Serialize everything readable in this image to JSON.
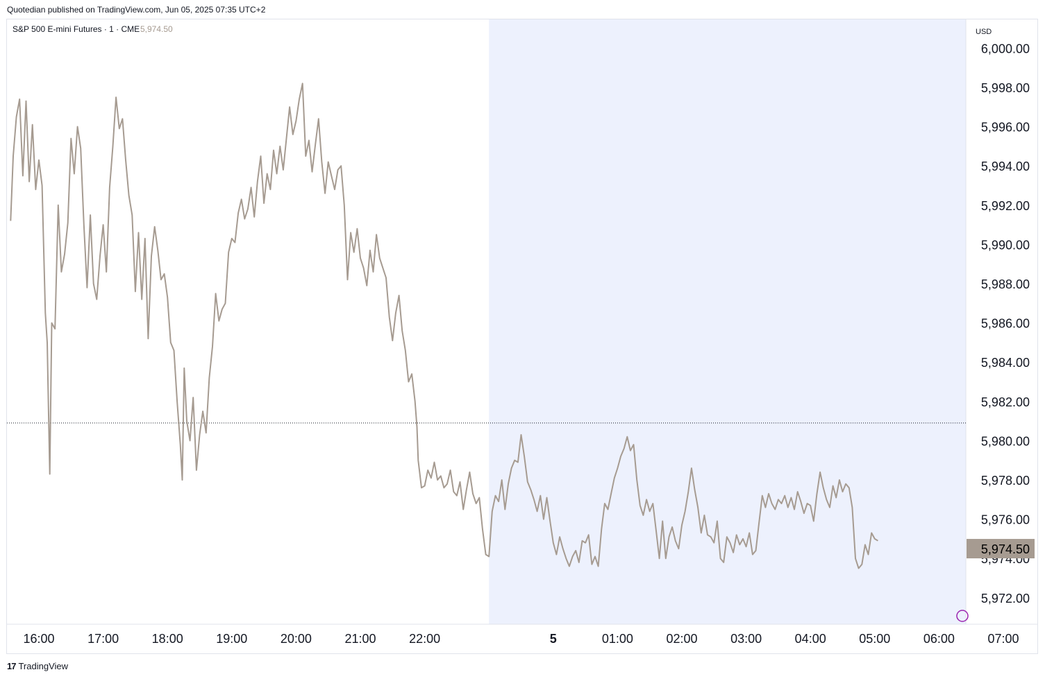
{
  "publisher_line": "Quotedian published on TradingView.com, Jun 05, 2025 07:35 UTC+2",
  "footer_brand": "TradingView",
  "colors": {
    "line": "#a69b91",
    "session_shade": "#edf1fd",
    "last_price_bg": "#a69b91",
    "grid_border": "#e0e3eb",
    "text": "#131722",
    "muted_price": "#a69b91",
    "alert_icon": "#9c27b0"
  },
  "chart_data": {
    "type": "line",
    "title": "S&P 500 E-mini Futures · 1 · CME",
    "title_price": "5,974.50",
    "currency": "USD",
    "ylim": [
      5971.0,
      6001.0
    ],
    "y_ticks": [
      "6,000.00",
      "5,998.00",
      "5,996.00",
      "5,994.00",
      "5,992.00",
      "5,990.00",
      "5,988.00",
      "5,986.00",
      "5,984.00",
      "5,982.00",
      "5,980.00",
      "5,978.00",
      "5,976.00",
      "5,974.00",
      "5,972.00"
    ],
    "x_ticks": [
      "16:00",
      "17:00",
      "18:00",
      "19:00",
      "20:00",
      "21:00",
      "22:00",
      "5",
      "01:00",
      "02:00",
      "03:00",
      "04:00",
      "05:00",
      "06:00",
      "07:00"
    ],
    "session_shade_start": "23:00",
    "reference_price": 5980.9,
    "last_price": 5974.5,
    "last_price_label": "5,974.50",
    "x_start_hours": 15.56,
    "x_end_hours": 31.6,
    "series": [
      {
        "values": [
          [
            15.56,
            5991.2
          ],
          [
            15.6,
            5994.5
          ],
          [
            15.65,
            5996.5
          ],
          [
            15.7,
            5997.4
          ],
          [
            15.75,
            5993.5
          ],
          [
            15.8,
            5997.3
          ],
          [
            15.85,
            5993.2
          ],
          [
            15.9,
            5996.1
          ],
          [
            15.95,
            5992.8
          ],
          [
            16.0,
            5994.3
          ],
          [
            16.05,
            5993.0
          ],
          [
            16.1,
            5986.5
          ],
          [
            16.13,
            5985.0
          ],
          [
            16.15,
            5981.5
          ],
          [
            16.17,
            5978.3
          ],
          [
            16.2,
            5986.0
          ],
          [
            16.25,
            5985.7
          ],
          [
            16.3,
            5992.0
          ],
          [
            16.35,
            5988.6
          ],
          [
            16.4,
            5989.5
          ],
          [
            16.45,
            5991.1
          ],
          [
            16.5,
            5995.4
          ],
          [
            16.55,
            5993.6
          ],
          [
            16.6,
            5996.0
          ],
          [
            16.65,
            5994.9
          ],
          [
            16.7,
            5991.0
          ],
          [
            16.75,
            5987.8
          ],
          [
            16.8,
            5991.5
          ],
          [
            16.85,
            5988.0
          ],
          [
            16.9,
            5987.2
          ],
          [
            16.95,
            5989.4
          ],
          [
            17.0,
            5991.0
          ],
          [
            17.05,
            5988.6
          ],
          [
            17.1,
            5992.9
          ],
          [
            17.15,
            5995.0
          ],
          [
            17.2,
            5997.5
          ],
          [
            17.25,
            5995.9
          ],
          [
            17.3,
            5996.4
          ],
          [
            17.35,
            5994.3
          ],
          [
            17.4,
            5992.5
          ],
          [
            17.45,
            5991.5
          ],
          [
            17.5,
            5987.6
          ],
          [
            17.55,
            5990.6
          ],
          [
            17.6,
            5987.2
          ],
          [
            17.65,
            5990.3
          ],
          [
            17.7,
            5985.2
          ],
          [
            17.75,
            5989.4
          ],
          [
            17.8,
            5990.9
          ],
          [
            17.85,
            5989.7
          ],
          [
            17.9,
            5988.2
          ],
          [
            17.95,
            5988.5
          ],
          [
            18.0,
            5987.3
          ],
          [
            18.05,
            5985.0
          ],
          [
            18.1,
            5984.6
          ],
          [
            18.15,
            5982.0
          ],
          [
            18.2,
            5979.8
          ],
          [
            18.23,
            5978.0
          ],
          [
            18.26,
            5983.7
          ],
          [
            18.3,
            5981.0
          ],
          [
            18.35,
            5980.0
          ],
          [
            18.4,
            5982.2
          ],
          [
            18.45,
            5978.5
          ],
          [
            18.5,
            5980.3
          ],
          [
            18.55,
            5981.5
          ],
          [
            18.6,
            5980.4
          ],
          [
            18.65,
            5983.2
          ],
          [
            18.7,
            5984.8
          ],
          [
            18.75,
            5987.5
          ],
          [
            18.8,
            5986.1
          ],
          [
            18.85,
            5986.7
          ],
          [
            18.9,
            5987.0
          ],
          [
            18.95,
            5989.6
          ],
          [
            19.0,
            5990.3
          ],
          [
            19.05,
            5990.1
          ],
          [
            19.1,
            5991.6
          ],
          [
            19.15,
            5992.3
          ],
          [
            19.2,
            5991.3
          ],
          [
            19.25,
            5991.8
          ],
          [
            19.3,
            5992.9
          ],
          [
            19.35,
            5991.4
          ],
          [
            19.4,
            5993.2
          ],
          [
            19.45,
            5994.5
          ],
          [
            19.5,
            5992.1
          ],
          [
            19.55,
            5993.6
          ],
          [
            19.6,
            5992.8
          ],
          [
            19.65,
            5994.8
          ],
          [
            19.7,
            5993.6
          ],
          [
            19.75,
            5995.0
          ],
          [
            19.8,
            5993.8
          ],
          [
            19.85,
            5995.4
          ],
          [
            19.9,
            5997.0
          ],
          [
            19.95,
            5995.6
          ],
          [
            20.0,
            5996.3
          ],
          [
            20.05,
            5997.4
          ],
          [
            20.1,
            5998.2
          ],
          [
            20.15,
            5994.5
          ],
          [
            20.2,
            5995.3
          ],
          [
            20.25,
            5993.7
          ],
          [
            20.3,
            5995.1
          ],
          [
            20.35,
            5996.4
          ],
          [
            20.4,
            5994.2
          ],
          [
            20.45,
            5992.6
          ],
          [
            20.5,
            5994.2
          ],
          [
            20.55,
            5993.5
          ],
          [
            20.6,
            5992.8
          ],
          [
            20.65,
            5993.8
          ],
          [
            20.7,
            5994.0
          ],
          [
            20.75,
            5992.0
          ],
          [
            20.8,
            5988.2
          ],
          [
            20.85,
            5990.6
          ],
          [
            20.9,
            5989.6
          ],
          [
            20.95,
            5990.8
          ],
          [
            21.0,
            5989.3
          ],
          [
            21.05,
            5988.8
          ],
          [
            21.1,
            5987.9
          ],
          [
            21.15,
            5989.7
          ],
          [
            21.2,
            5988.6
          ],
          [
            21.25,
            5990.5
          ],
          [
            21.3,
            5989.3
          ],
          [
            21.35,
            5988.8
          ],
          [
            21.4,
            5988.3
          ],
          [
            21.45,
            5986.3
          ],
          [
            21.5,
            5985.1
          ],
          [
            21.55,
            5986.5
          ],
          [
            21.6,
            5987.4
          ],
          [
            21.65,
            5985.6
          ],
          [
            21.7,
            5984.6
          ],
          [
            21.75,
            5983.0
          ],
          [
            21.8,
            5983.4
          ],
          [
            21.85,
            5982.0
          ],
          [
            21.88,
            5980.7
          ],
          [
            21.9,
            5979.0
          ],
          [
            21.95,
            5977.6
          ],
          [
            22.0,
            5977.7
          ],
          [
            22.05,
            5978.5
          ],
          [
            22.1,
            5978.1
          ],
          [
            22.15,
            5978.9
          ],
          [
            22.2,
            5978.0
          ],
          [
            22.25,
            5978.2
          ],
          [
            22.3,
            5977.6
          ],
          [
            22.35,
            5977.8
          ],
          [
            22.4,
            5978.5
          ],
          [
            22.45,
            5977.4
          ],
          [
            22.5,
            5977.2
          ],
          [
            22.55,
            5977.9
          ],
          [
            22.6,
            5976.5
          ],
          [
            22.65,
            5977.5
          ],
          [
            22.7,
            5978.4
          ],
          [
            22.75,
            5977.3
          ],
          [
            22.8,
            5976.8
          ],
          [
            22.85,
            5977.1
          ],
          [
            22.9,
            5975.5
          ],
          [
            22.95,
            5974.2
          ],
          [
            23.0,
            5974.1
          ],
          [
            23.05,
            5976.4
          ],
          [
            23.1,
            5977.2
          ],
          [
            23.15,
            5976.9
          ],
          [
            23.2,
            5978.0
          ],
          [
            23.25,
            5976.5
          ],
          [
            23.3,
            5977.8
          ],
          [
            23.35,
            5978.6
          ],
          [
            23.4,
            5979.0
          ],
          [
            23.45,
            5978.9
          ],
          [
            23.5,
            5980.3
          ],
          [
            23.55,
            5979.2
          ],
          [
            23.6,
            5977.9
          ],
          [
            23.65,
            5977.5
          ],
          [
            23.7,
            5977.0
          ],
          [
            23.75,
            5976.4
          ],
          [
            23.8,
            5977.2
          ],
          [
            23.85,
            5976.0
          ],
          [
            23.9,
            5977.1
          ],
          [
            23.95,
            5975.9
          ],
          [
            24.0,
            5974.8
          ],
          [
            24.05,
            5974.2
          ],
          [
            24.1,
            5975.1
          ],
          [
            24.15,
            5974.5
          ],
          [
            24.2,
            5974.0
          ],
          [
            24.25,
            5973.6
          ],
          [
            24.3,
            5974.1
          ],
          [
            24.35,
            5974.4
          ],
          [
            24.4,
            5973.8
          ],
          [
            24.45,
            5974.9
          ],
          [
            24.5,
            5974.8
          ],
          [
            24.55,
            5975.2
          ],
          [
            24.6,
            5973.7
          ],
          [
            24.65,
            5974.1
          ],
          [
            24.7,
            5973.6
          ],
          [
            24.75,
            5975.5
          ],
          [
            24.8,
            5976.8
          ],
          [
            24.85,
            5976.5
          ],
          [
            24.9,
            5977.3
          ],
          [
            24.95,
            5978.1
          ],
          [
            25.0,
            5978.6
          ],
          [
            25.05,
            5979.2
          ],
          [
            25.1,
            5979.6
          ],
          [
            25.15,
            5980.2
          ],
          [
            25.2,
            5979.5
          ],
          [
            25.25,
            5979.8
          ],
          [
            25.3,
            5978.0
          ],
          [
            25.35,
            5976.7
          ],
          [
            25.4,
            5976.2
          ],
          [
            25.45,
            5977.0
          ],
          [
            25.5,
            5976.4
          ],
          [
            25.55,
            5976.8
          ],
          [
            25.6,
            5975.4
          ],
          [
            25.65,
            5974.0
          ],
          [
            25.7,
            5975.9
          ],
          [
            25.75,
            5974.0
          ],
          [
            25.8,
            5975.1
          ],
          [
            25.85,
            5975.6
          ],
          [
            25.9,
            5974.9
          ],
          [
            25.95,
            5974.5
          ],
          [
            26.0,
            5975.7
          ],
          [
            26.05,
            5976.4
          ],
          [
            26.1,
            5977.4
          ],
          [
            26.15,
            5978.6
          ],
          [
            26.2,
            5977.5
          ],
          [
            26.25,
            5976.6
          ],
          [
            26.3,
            5975.3
          ],
          [
            26.35,
            5976.2
          ],
          [
            26.4,
            5975.2
          ],
          [
            26.45,
            5975.1
          ],
          [
            26.5,
            5974.8
          ],
          [
            26.55,
            5975.9
          ],
          [
            26.6,
            5974.0
          ],
          [
            26.65,
            5973.8
          ],
          [
            26.7,
            5975.1
          ],
          [
            26.75,
            5974.8
          ],
          [
            26.8,
            5974.3
          ],
          [
            26.85,
            5975.2
          ],
          [
            26.9,
            5974.7
          ],
          [
            26.95,
            5975.0
          ],
          [
            27.0,
            5974.6
          ],
          [
            27.05,
            5975.3
          ],
          [
            27.1,
            5974.2
          ],
          [
            27.15,
            5974.4
          ],
          [
            27.2,
            5975.8
          ],
          [
            27.25,
            5977.2
          ],
          [
            27.3,
            5976.6
          ],
          [
            27.35,
            5977.3
          ],
          [
            27.4,
            5976.8
          ],
          [
            27.45,
            5976.5
          ],
          [
            27.5,
            5977.0
          ],
          [
            27.55,
            5976.8
          ],
          [
            27.6,
            5977.2
          ],
          [
            27.65,
            5976.6
          ],
          [
            27.7,
            5977.1
          ],
          [
            27.75,
            5976.5
          ],
          [
            27.8,
            5977.4
          ],
          [
            27.85,
            5976.9
          ],
          [
            27.9,
            5976.3
          ],
          [
            27.95,
            5976.8
          ],
          [
            28.0,
            5976.7
          ],
          [
            28.05,
            5975.9
          ],
          [
            28.1,
            5977.3
          ],
          [
            28.15,
            5978.4
          ],
          [
            28.2,
            5977.6
          ],
          [
            28.25,
            5977.0
          ],
          [
            28.3,
            5976.6
          ],
          [
            28.35,
            5977.7
          ],
          [
            28.4,
            5977.1
          ],
          [
            28.45,
            5978.0
          ],
          [
            28.5,
            5977.4
          ],
          [
            28.55,
            5977.8
          ],
          [
            28.6,
            5977.6
          ],
          [
            28.65,
            5976.6
          ],
          [
            28.7,
            5974.0
          ],
          [
            28.75,
            5973.5
          ],
          [
            28.8,
            5973.7
          ],
          [
            28.85,
            5974.7
          ],
          [
            28.9,
            5974.2
          ],
          [
            28.95,
            5975.3
          ],
          [
            29.0,
            5975.0
          ],
          [
            29.05,
            5974.9
          ]
        ]
      }
    ]
  }
}
